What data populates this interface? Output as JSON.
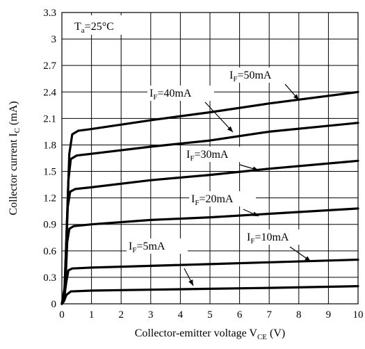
{
  "chart_data": {
    "type": "line",
    "title": "",
    "xlabel": {
      "main": "Collector-emitter voltage V",
      "sub": "CE",
      "unit": " (V)"
    },
    "ylabel": {
      "main": "Collector current I",
      "sub": "C",
      "unit": " (mA)"
    },
    "xlim": [
      0,
      10
    ],
    "ylim": [
      0,
      3.3
    ],
    "xticks": [
      "0",
      "1",
      "2",
      "3",
      "4",
      "5",
      "6",
      "7",
      "8",
      "9",
      "10"
    ],
    "yticks": [
      "0",
      "0.3",
      "0.6",
      "0.9",
      "1.2",
      "1.5",
      "1.8",
      "2.1",
      "2.4",
      "2.7",
      "3",
      "3.3"
    ],
    "grid": true,
    "condition": {
      "main": "T",
      "sub": "a",
      "rest": "=25°C"
    },
    "series": [
      {
        "name": "I_F=5mA",
        "label": {
          "main": "I",
          "sub": "F",
          "rest": "=5mA"
        },
        "points": [
          [
            0,
            0
          ],
          [
            0.07,
            0.03
          ],
          [
            0.15,
            0.1
          ],
          [
            0.3,
            0.14
          ],
          [
            1,
            0.15
          ],
          [
            3,
            0.16
          ],
          [
            5,
            0.17
          ],
          [
            7,
            0.18
          ],
          [
            10,
            0.2
          ]
        ]
      },
      {
        "name": "I_F=10mA",
        "label": {
          "main": "I",
          "sub": "F",
          "rest": "=10mA"
        },
        "points": [
          [
            0,
            0
          ],
          [
            0.07,
            0.05
          ],
          [
            0.15,
            0.25
          ],
          [
            0.22,
            0.38
          ],
          [
            0.35,
            0.4
          ],
          [
            1,
            0.41
          ],
          [
            3,
            0.43
          ],
          [
            5,
            0.45
          ],
          [
            7,
            0.47
          ],
          [
            10,
            0.5
          ]
        ]
      },
      {
        "name": "I_F=20mA",
        "label": {
          "main": "I",
          "sub": "F",
          "rest": "=20mA"
        },
        "points": [
          [
            0,
            0
          ],
          [
            0.07,
            0.05
          ],
          [
            0.13,
            0.3
          ],
          [
            0.18,
            0.7
          ],
          [
            0.25,
            0.85
          ],
          [
            0.4,
            0.88
          ],
          [
            1,
            0.9
          ],
          [
            3,
            0.95
          ],
          [
            5,
            0.98
          ],
          [
            7,
            1.02
          ],
          [
            10,
            1.08
          ]
        ]
      },
      {
        "name": "I_F=30mA",
        "label": {
          "main": "I",
          "sub": "F",
          "rest": "=30mA"
        },
        "points": [
          [
            0,
            0
          ],
          [
            0.08,
            0.1
          ],
          [
            0.14,
            0.6
          ],
          [
            0.2,
            1.1
          ],
          [
            0.28,
            1.27
          ],
          [
            0.45,
            1.3
          ],
          [
            1,
            1.32
          ],
          [
            3,
            1.4
          ],
          [
            5,
            1.46
          ],
          [
            7,
            1.53
          ],
          [
            10,
            1.62
          ]
        ]
      },
      {
        "name": "I_F=40mA",
        "label": {
          "main": "I",
          "sub": "F",
          "rest": "=40mA"
        },
        "points": [
          [
            0,
            0
          ],
          [
            0.09,
            0.15
          ],
          [
            0.16,
            0.8
          ],
          [
            0.22,
            1.4
          ],
          [
            0.3,
            1.64
          ],
          [
            0.5,
            1.68
          ],
          [
            1,
            1.7
          ],
          [
            3,
            1.78
          ],
          [
            5,
            1.85
          ],
          [
            7,
            1.95
          ],
          [
            10,
            2.05
          ]
        ]
      },
      {
        "name": "I_F=50mA",
        "label": {
          "main": "I",
          "sub": "F",
          "rest": "=50mA"
        },
        "points": [
          [
            0,
            0
          ],
          [
            0.1,
            0.2
          ],
          [
            0.17,
            0.9
          ],
          [
            0.25,
            1.7
          ],
          [
            0.35,
            1.92
          ],
          [
            0.55,
            1.96
          ],
          [
            1,
            1.98
          ],
          [
            3,
            2.08
          ],
          [
            5,
            2.17
          ],
          [
            7,
            2.27
          ],
          [
            10,
            2.4
          ]
        ]
      }
    ]
  }
}
